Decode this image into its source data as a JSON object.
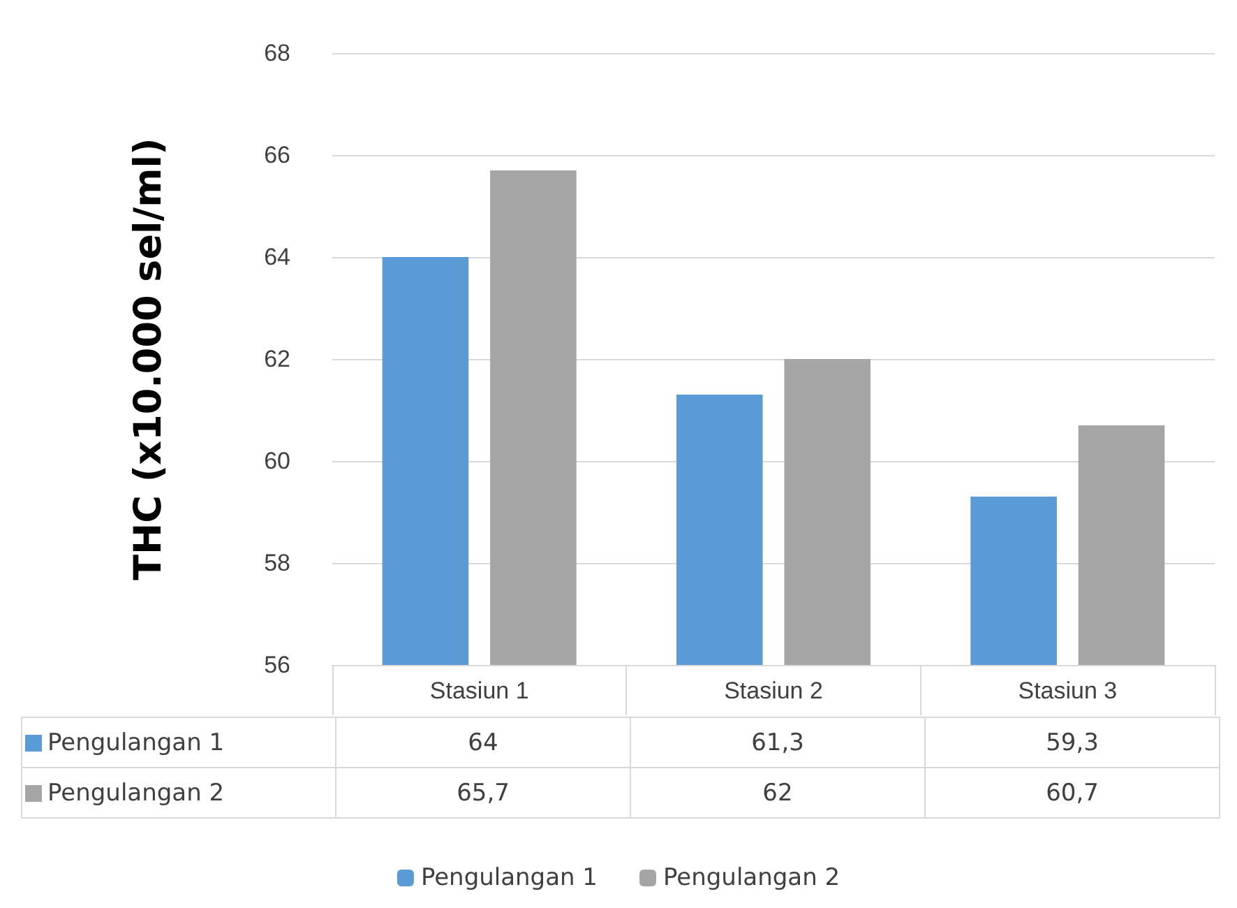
{
  "chart_data": {
    "type": "bar",
    "ylabel": "THC (x10.000 sel/ml)",
    "categories": [
      "Stasiun 1",
      "Stasiun 2",
      "Stasiun 3"
    ],
    "series": [
      {
        "name": "Pengulangan 1",
        "color": "#5b9bd5",
        "values": [
          64,
          61.3,
          59.3
        ],
        "value_labels": [
          "64",
          "61,3",
          "59,3"
        ]
      },
      {
        "name": "Pengulangan 2",
        "color": "#a5a5a5",
        "values": [
          65.7,
          62,
          60.7
        ],
        "value_labels": [
          "65,7",
          "62",
          "60,7"
        ]
      }
    ],
    "ylim": [
      56,
      68
    ],
    "yticks": [
      56,
      58,
      60,
      62,
      64,
      66,
      68
    ],
    "grid": "y",
    "legend": "bottom"
  }
}
